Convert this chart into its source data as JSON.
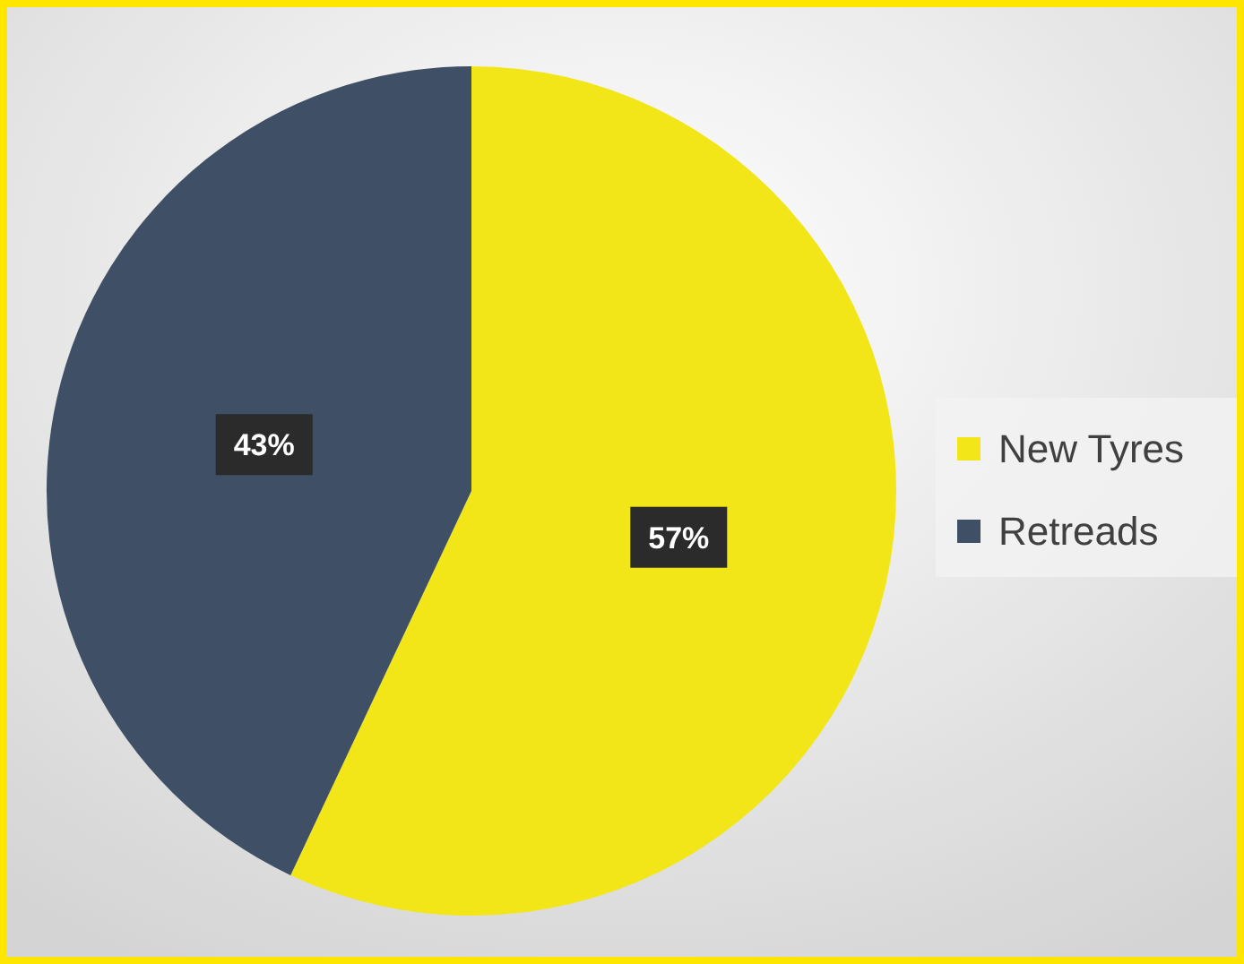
{
  "chart_data": {
    "type": "pie",
    "categories": [
      "New Tyres",
      "Retreads"
    ],
    "values": [
      57,
      43
    ],
    "value_labels": [
      "57%",
      "43%"
    ],
    "colors": [
      "#f2e619",
      "#3f4f66"
    ],
    "legend": "right"
  }
}
